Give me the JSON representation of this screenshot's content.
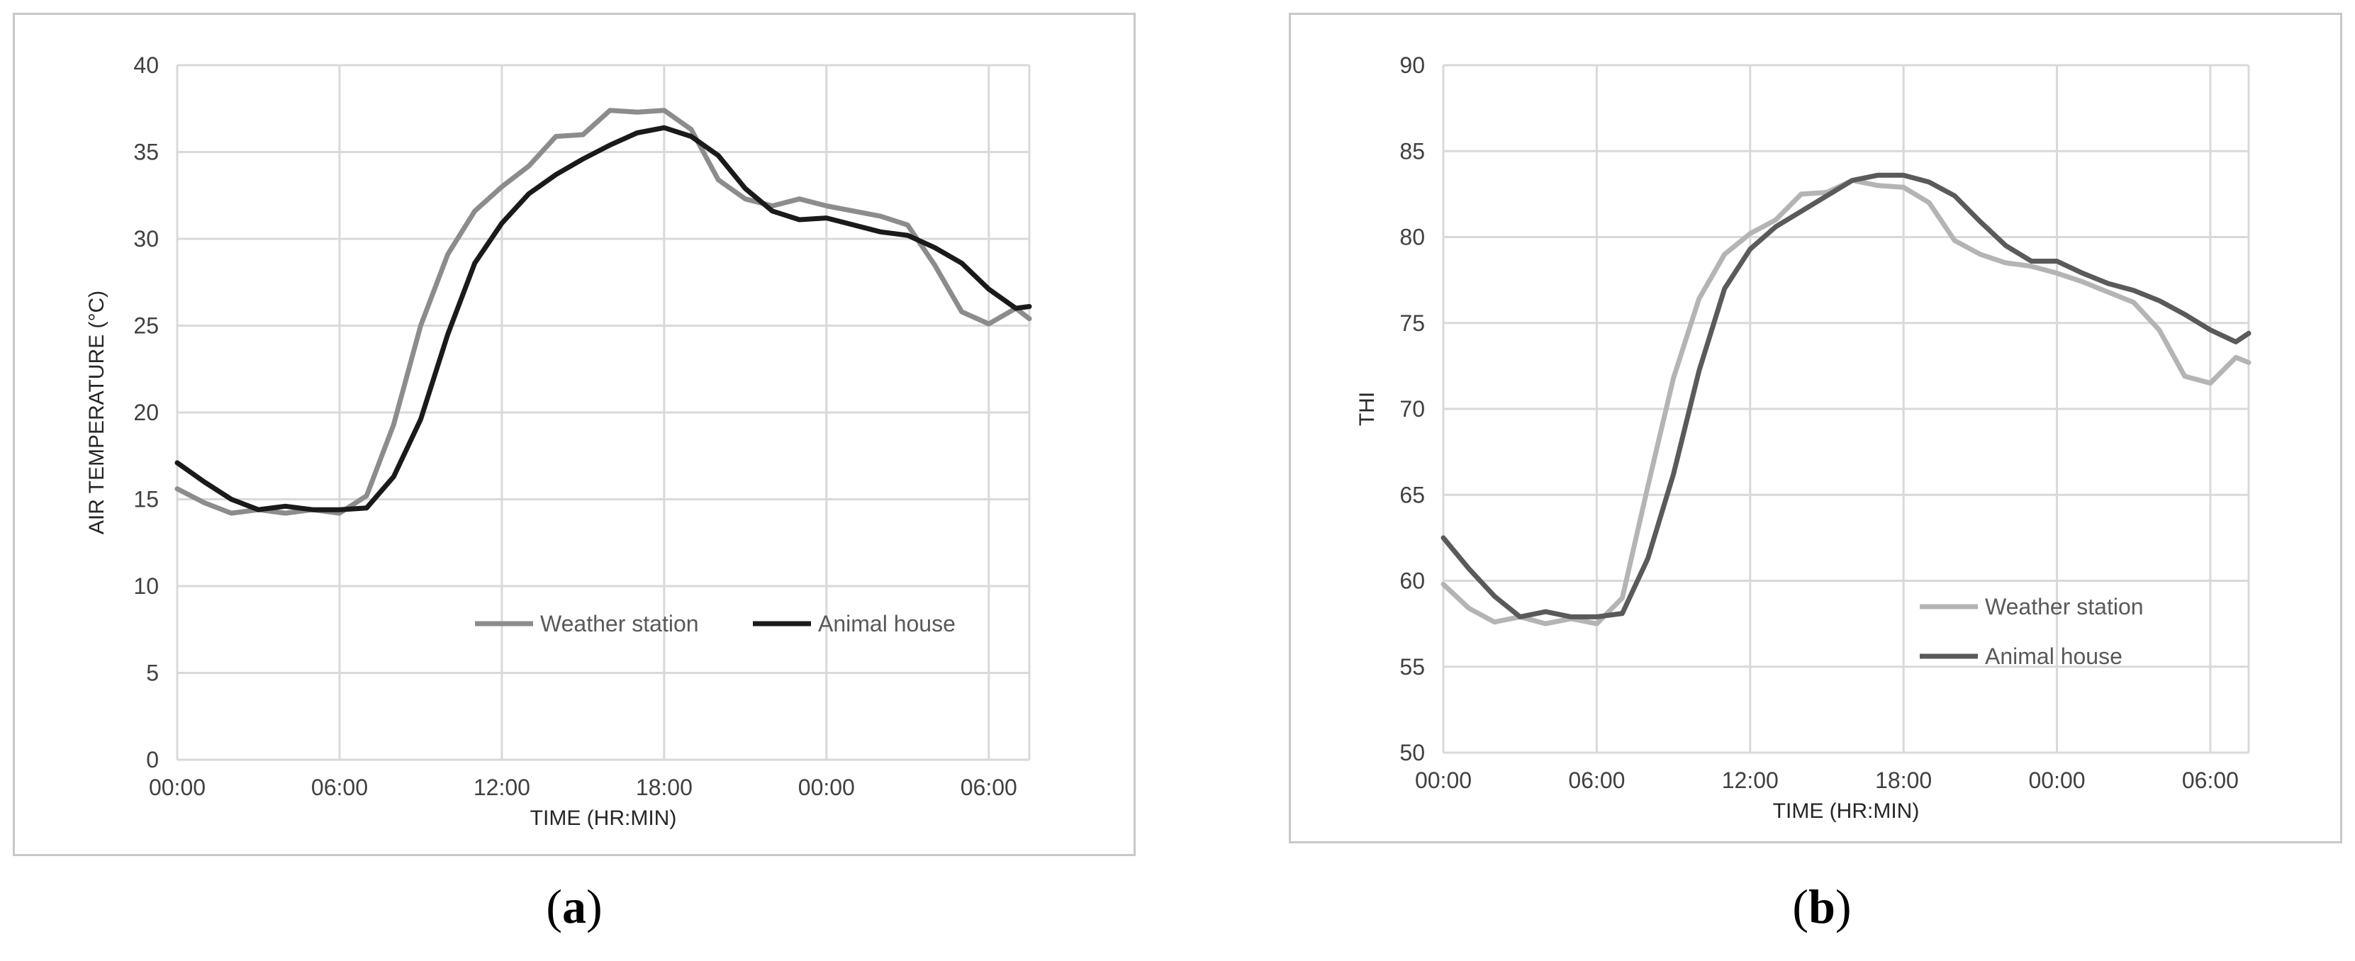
{
  "chart_data": [
    {
      "type": "line",
      "caption": "a",
      "xlabel": "TIME (HR:MIN)",
      "ylabel": "AIR TEMPERATURE (°C)",
      "xlim": [
        0,
        31.5
      ],
      "ylim": [
        0,
        40
      ],
      "yticks": [
        0,
        5,
        10,
        15,
        20,
        25,
        30,
        35,
        40
      ],
      "xticks": [
        {
          "x": 0,
          "label": "00:00"
        },
        {
          "x": 6,
          "label": "06:00"
        },
        {
          "x": 12,
          "label": "12:00"
        },
        {
          "x": 18,
          "label": "18:00"
        },
        {
          "x": 24,
          "label": "00:00"
        },
        {
          "x": 30,
          "label": "06:00"
        }
      ],
      "grid": true,
      "legend": "bottom-right",
      "x": [
        0,
        1,
        2,
        3,
        4,
        5,
        6,
        7,
        8,
        9,
        10,
        11,
        12,
        13,
        14,
        15,
        16,
        17,
        18,
        19,
        20,
        21,
        22,
        23,
        24,
        25,
        26,
        27,
        28,
        29,
        30,
        31,
        31.5
      ],
      "series": [
        {
          "name": "Weather station",
          "color": "#8c8c8c",
          "values": [
            15.6,
            14.8,
            14.2,
            14.4,
            14.2,
            14.4,
            14.2,
            15.2,
            19.3,
            25.0,
            29.1,
            31.6,
            33.0,
            34.2,
            35.9,
            36.0,
            37.4,
            37.3,
            37.4,
            36.3,
            33.4,
            32.3,
            31.9,
            32.3,
            31.9,
            31.6,
            31.3,
            30.8,
            28.5,
            25.8,
            25.1,
            26.0,
            25.4
          ]
        },
        {
          "name": "Animal house",
          "color": "#1a1a1a",
          "values": [
            17.1,
            16.0,
            15.0,
            14.4,
            14.6,
            14.4,
            14.4,
            14.5,
            16.3,
            19.6,
            24.5,
            28.6,
            30.9,
            32.6,
            33.7,
            34.6,
            35.4,
            36.1,
            36.4,
            35.9,
            34.8,
            32.9,
            31.6,
            31.1,
            31.2,
            30.8,
            30.4,
            30.2,
            29.5,
            28.6,
            27.1,
            26.0,
            26.1
          ]
        }
      ]
    },
    {
      "type": "line",
      "caption": "b",
      "xlabel": "TIME (HR:MIN)",
      "ylabel": "THI",
      "xlim": [
        0,
        31.5
      ],
      "ylim": [
        50,
        90
      ],
      "yticks": [
        50,
        55,
        60,
        65,
        70,
        75,
        80,
        85,
        90
      ],
      "xticks": [
        {
          "x": 0,
          "label": "00:00"
        },
        {
          "x": 6,
          "label": "06:00"
        },
        {
          "x": 12,
          "label": "12:00"
        },
        {
          "x": 18,
          "label": "18:00"
        },
        {
          "x": 24,
          "label": "00:00"
        },
        {
          "x": 30,
          "label": "06:00"
        }
      ],
      "grid": true,
      "legend": "bottom-right",
      "x": [
        0,
        1,
        2,
        3,
        4,
        5,
        6,
        7,
        8,
        9,
        10,
        11,
        12,
        13,
        14,
        15,
        16,
        17,
        18,
        19,
        20,
        21,
        22,
        23,
        24,
        25,
        26,
        27,
        28,
        29,
        30,
        31,
        31.5
      ],
      "series": [
        {
          "name": "Weather station",
          "color": "#b4b4b4",
          "values": [
            59.8,
            58.4,
            57.6,
            57.9,
            57.5,
            57.8,
            57.5,
            59.0,
            65.5,
            71.8,
            76.4,
            79.0,
            80.2,
            81.0,
            82.5,
            82.6,
            83.3,
            83.0,
            82.9,
            82.0,
            79.8,
            79.0,
            78.5,
            78.3,
            77.9,
            77.4,
            76.8,
            76.2,
            74.6,
            71.9,
            71.5,
            73.0,
            72.7
          ]
        },
        {
          "name": "Animal house",
          "color": "#5a5a5a",
          "values": [
            62.5,
            60.7,
            59.1,
            57.9,
            58.2,
            57.9,
            57.9,
            58.1,
            61.3,
            66.2,
            72.2,
            77.0,
            79.3,
            80.6,
            81.5,
            82.4,
            83.3,
            83.6,
            83.6,
            83.2,
            82.4,
            80.9,
            79.5,
            78.6,
            78.6,
            77.9,
            77.3,
            76.9,
            76.3,
            75.5,
            74.6,
            73.9,
            74.4
          ]
        }
      ]
    }
  ]
}
